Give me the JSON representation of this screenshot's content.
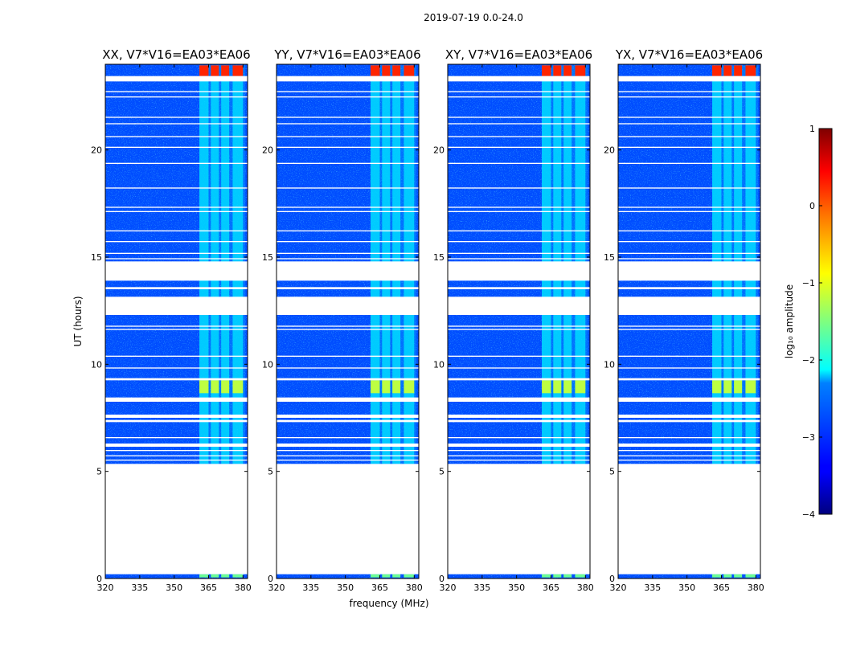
{
  "chart_data": {
    "type": "heatmap",
    "suptitle": "2019-07-19 0.0-24.0",
    "ylabel": "UT (hours)",
    "xlabel": "frequency (MHz)",
    "xlim": [
      320,
      382
    ],
    "ylim": [
      0,
      24
    ],
    "x_ticks": [
      "320",
      "335",
      "350",
      "365",
      "380"
    ],
    "x_tick_values": [
      320,
      335,
      350,
      365,
      380
    ],
    "y_ticks": [
      "0",
      "5",
      "10",
      "15",
      "20"
    ],
    "y_tick_values": [
      0,
      5,
      10,
      15,
      20
    ],
    "panels": [
      {
        "title": "XX, V7*V16=EA03*EA06"
      },
      {
        "title": "YY, V7*V16=EA03*EA06"
      },
      {
        "title": "XY, V7*V16=EA03*EA06"
      },
      {
        "title": "YX, V7*V16=EA03*EA06"
      }
    ],
    "colorbar": {
      "label": "log₁₀ amplitude",
      "range": [
        -4,
        1
      ],
      "ticks": [
        "1",
        "0",
        "−1",
        "−2",
        "−3",
        "−4"
      ],
      "tick_values": [
        1,
        0,
        -1,
        -2,
        -3,
        -4
      ],
      "colormap": "jet"
    },
    "background_level": -3.0,
    "rfi_band_mhz": [
      361,
      381
    ],
    "rfi_channels_mhz": [
      [
        361,
        365
      ],
      [
        366,
        369.5
      ],
      [
        370.5,
        374
      ],
      [
        375.5,
        380
      ]
    ],
    "data_gaps_ut": [
      [
        0.2,
        5.35
      ],
      [
        5.5,
        5.55
      ],
      [
        5.7,
        5.75
      ],
      [
        5.95,
        6.0
      ],
      [
        6.15,
        6.3
      ],
      [
        6.55,
        6.6
      ],
      [
        7.3,
        7.4
      ],
      [
        7.5,
        7.65
      ],
      [
        8.25,
        8.45
      ],
      [
        9.25,
        9.35
      ],
      [
        9.8,
        9.85
      ],
      [
        10.35,
        10.4
      ],
      [
        11.6,
        11.65
      ],
      [
        11.75,
        11.8
      ],
      [
        12.3,
        13.15
      ],
      [
        13.5,
        13.6
      ],
      [
        13.9,
        14.8
      ],
      [
        14.9,
        14.95
      ],
      [
        15.15,
        15.2
      ],
      [
        15.7,
        15.75
      ],
      [
        16.2,
        16.25
      ],
      [
        17.1,
        17.15
      ],
      [
        17.3,
        17.35
      ],
      [
        18.2,
        18.25
      ],
      [
        19.35,
        19.4
      ],
      [
        20.1,
        20.15
      ],
      [
        20.6,
        20.65
      ],
      [
        21.2,
        21.25
      ],
      [
        21.5,
        21.55
      ],
      [
        22.45,
        22.5
      ],
      [
        22.7,
        22.75
      ],
      [
        23.2,
        23.45
      ]
    ],
    "bright_epochs": [
      {
        "ut": [
          8.65,
          9.25
        ],
        "level": -1.2
      },
      {
        "ut": [
          23.45,
          23.95
        ],
        "level": 0.2
      },
      {
        "ut": [
          0.05,
          0.2
        ],
        "level": -1.6
      }
    ]
  }
}
